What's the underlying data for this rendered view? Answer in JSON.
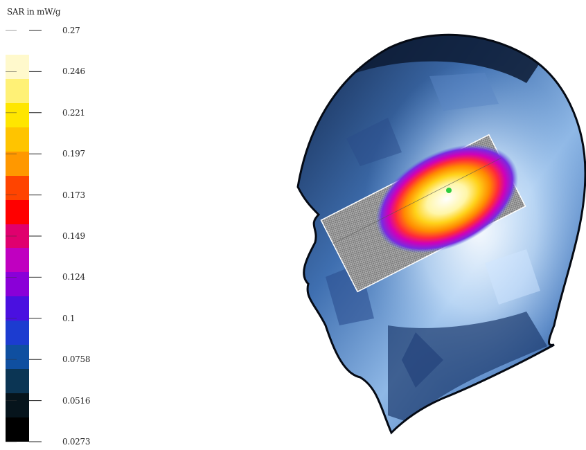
{
  "legend": {
    "title": "SAR in mW/g",
    "unit": "mW/g",
    "min": 0.0273,
    "max": 0.27,
    "ticks": [
      "0.27",
      "0.246",
      "0.221",
      "0.197",
      "0.173",
      "0.149",
      "0.124",
      "0.1",
      "0.0758",
      "0.0516",
      "0.0273"
    ],
    "colors": [
      "#ffffff",
      "#fff9cc",
      "#fff176",
      "#ffe600",
      "#ffc400",
      "#ff9800",
      "#ff4400",
      "#ff0000",
      "#e0006e",
      "#c000c0",
      "#8a00d8",
      "#4a10e0",
      "#1c3cd0",
      "#0f4fa0",
      "#0b3554",
      "#06141c",
      "#000000"
    ]
  },
  "hotspot": {
    "peak_marker": "peak-point"
  }
}
